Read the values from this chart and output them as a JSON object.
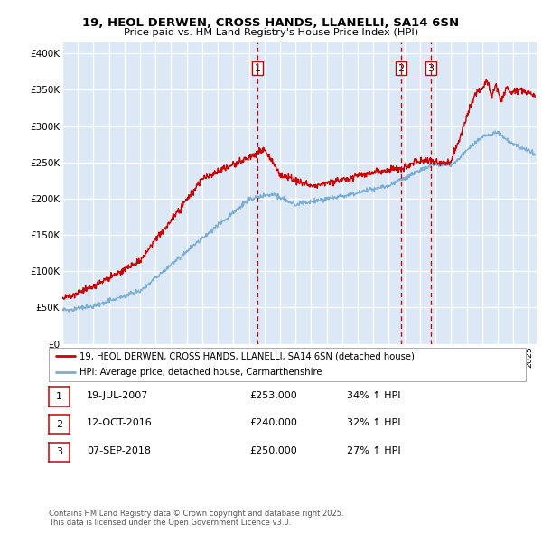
{
  "title": "19, HEOL DERWEN, CROSS HANDS, LLANELLI, SA14 6SN",
  "subtitle": "Price paid vs. HM Land Registry's House Price Index (HPI)",
  "ylabel_ticks": [
    "£0",
    "£50K",
    "£100K",
    "£150K",
    "£200K",
    "£250K",
    "£300K",
    "£350K",
    "£400K"
  ],
  "ytick_values": [
    0,
    50000,
    100000,
    150000,
    200000,
    250000,
    300000,
    350000,
    400000
  ],
  "ylim": [
    0,
    415000
  ],
  "xlim_start": 1995.0,
  "xlim_end": 2025.5,
  "bg_color": "#dce8f5",
  "grid_color": "#ffffff",
  "red_color": "#cc0000",
  "blue_color": "#7aaed4",
  "sale_dates": [
    2007.54,
    2016.78,
    2018.69
  ],
  "sale_labels": [
    "1",
    "2",
    "3"
  ],
  "legend1": "19, HEOL DERWEN, CROSS HANDS, LLANELLI, SA14 6SN (detached house)",
  "legend2": "HPI: Average price, detached house, Carmarthenshire",
  "table_rows": [
    [
      "1",
      "19-JUL-2007",
      "£253,000",
      "34% ↑ HPI"
    ],
    [
      "2",
      "12-OCT-2016",
      "£240,000",
      "32% ↑ HPI"
    ],
    [
      "3",
      "07-SEP-2018",
      "£250,000",
      "27% ↑ HPI"
    ]
  ],
  "footnote": "Contains HM Land Registry data © Crown copyright and database right 2025.\nThis data is licensed under the Open Government Licence v3.0."
}
